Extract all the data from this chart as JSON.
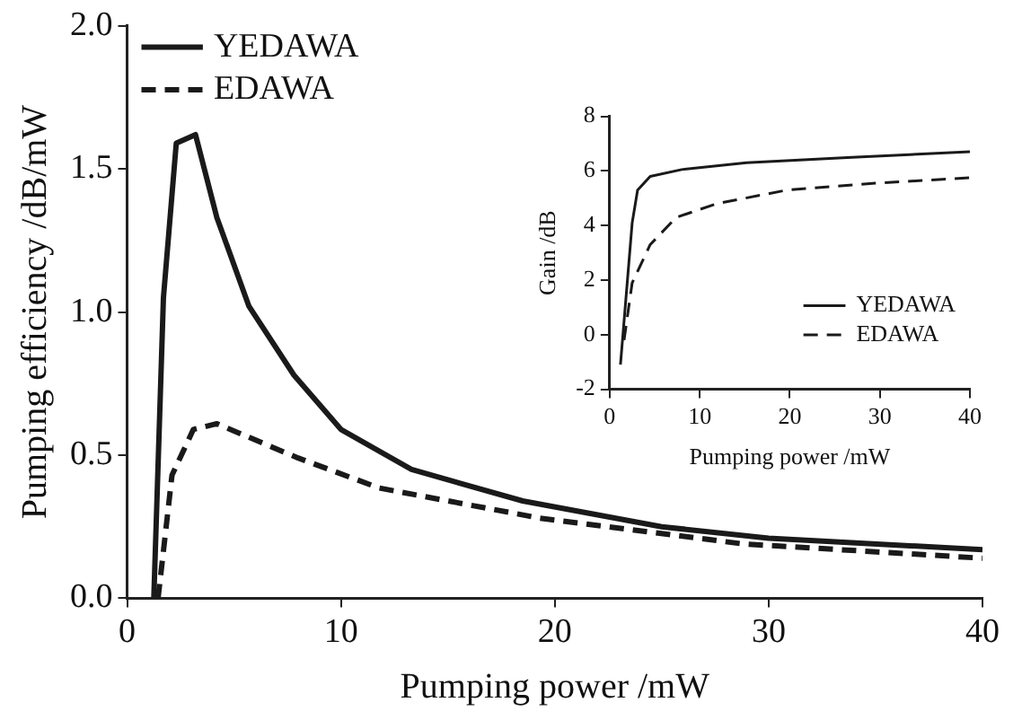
{
  "chart_data": [
    {
      "type": "line",
      "xlabel": "Pumping power /mW",
      "ylabel": "Pumping efficiency /dB/mW",
      "xlim": [
        0,
        40
      ],
      "xticks": [
        0,
        10,
        20,
        30,
        40
      ],
      "ylim": [
        0,
        2
      ],
      "yticks": [
        {
          "value": 0,
          "label": "0.0"
        },
        {
          "value": 0.5,
          "label": "0.5"
        },
        {
          "value": 1,
          "label": "1.0"
        },
        {
          "value": 1.5,
          "label": "1.5"
        },
        {
          "value": 2,
          "label": "2.0"
        }
      ],
      "legend": "top left",
      "marker": "none",
      "series": [
        {
          "name": "YEDAWA",
          "color": "#1a1a1a",
          "line_style": "solid",
          "x": [
            1.25,
            1.7,
            2.3,
            3.2,
            4.2,
            5.7,
            7.8,
            10,
            13.3,
            18.5,
            25,
            30,
            40
          ],
          "values": [
            0,
            1.05,
            1.59,
            1.62,
            1.33,
            1.02,
            0.78,
            0.59,
            0.45,
            0.34,
            0.25,
            0.21,
            0.17
          ]
        },
        {
          "name": "EDAWA",
          "color": "#1a1a1a",
          "line_style": "dashed",
          "x": [
            1.45,
            2.1,
            3.1,
            4.2,
            8,
            11.8,
            19.3,
            28.8,
            40
          ],
          "values": [
            0,
            0.43,
            0.59,
            0.61,
            0.49,
            0.385,
            0.28,
            0.19,
            0.14
          ]
        }
      ]
    },
    {
      "type": "line",
      "xlabel": "Pumping power /mW",
      "ylabel": "Gain /dB",
      "xlim": [
        0,
        40
      ],
      "xticks": [
        0,
        10,
        20,
        30,
        40
      ],
      "ylim": [
        -2,
        8
      ],
      "yticks": [
        -2,
        0,
        2,
        4,
        6,
        8
      ],
      "legend": "bottom right",
      "marker": "none",
      "series": [
        {
          "name": "YEDAWA",
          "color": "#1a1a1a",
          "line_style": "solid",
          "x": [
            1.2,
            2.5,
            3.1,
            4.5,
            8,
            15.2,
            26.9,
            40
          ],
          "values": [
            -1.1,
            4.1,
            5.3,
            5.8,
            6.05,
            6.3,
            6.5,
            6.7
          ]
        },
        {
          "name": "EDAWA",
          "color": "#1a1a1a",
          "line_style": "dashed",
          "x": [
            1.6,
            2.5,
            4.5,
            7.4,
            11.9,
            19.7,
            29.5,
            40
          ],
          "values": [
            -0.2,
            1.9,
            3.3,
            4.3,
            4.8,
            5.3,
            5.55,
            5.75
          ]
        }
      ]
    }
  ]
}
